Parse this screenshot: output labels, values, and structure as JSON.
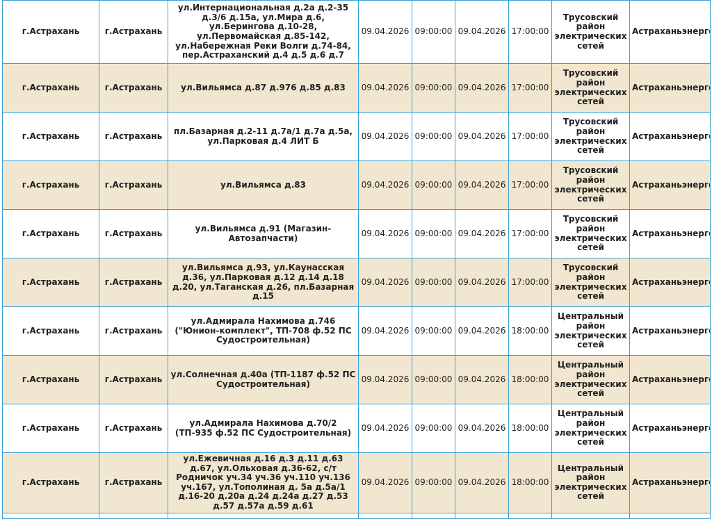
{
  "rows": [
    {
      "city1": "г.Астрахань",
      "city2": "г.Астрахань",
      "address": "ул.Интернациональная д.2а д.2-35 д.3/6 д.15а, ул.Мира д.6, ул.Берингова д.10-28, ул.Первомайская д.85-142, ул.Набережная Реки Волги д.74-84, пер.Астраханский д.4 д.5 д.6 д.7",
      "date_start": "09.04.2026",
      "time_start": "09:00:00",
      "date_end": "09.04.2026",
      "time_end": "17:00:00",
      "district": "Трусовский район электрических сетей",
      "org": "Астраханьэнерго"
    },
    {
      "city1": "г.Астрахань",
      "city2": "г.Астрахань",
      "address": "ул.Вильямса д.87 д.976 д.85 д.83",
      "date_start": "09.04.2026",
      "time_start": "09:00:00",
      "date_end": "09.04.2026",
      "time_end": "17:00:00",
      "district": "Трусовский район электрических сетей",
      "org": "Астраханьэнерго"
    },
    {
      "city1": "г.Астрахань",
      "city2": "г.Астрахань",
      "address": "пл.Базарная д.2-11 д.7а/1 д.7а д.5а, ул.Парковая д.4 ЛИТ Б",
      "date_start": "09.04.2026",
      "time_start": "09:00:00",
      "date_end": "09.04.2026",
      "time_end": "17:00:00",
      "district": "Трусовский район электрических сетей",
      "org": "Астраханьэнерго"
    },
    {
      "city1": "г.Астрахань",
      "city2": "г.Астрахань",
      "address": "ул.Вильямса д.83",
      "date_start": "09.04.2026",
      "time_start": "09:00:00",
      "date_end": "09.04.2026",
      "time_end": "17:00:00",
      "district": "Трусовский район электрических сетей",
      "org": "Астраханьэнерго"
    },
    {
      "city1": "г.Астрахань",
      "city2": "г.Астрахань",
      "address": "ул.Вильямса д.91 (Магазин-Автозапчасти)",
      "date_start": "09.04.2026",
      "time_start": "09:00:00",
      "date_end": "09.04.2026",
      "time_end": "17:00:00",
      "district": "Трусовский район электрических сетей",
      "org": "Астраханьэнерго"
    },
    {
      "city1": "г.Астрахань",
      "city2": "г.Астрахань",
      "address": "ул.Вильямса д.93, ул.Каунасская д.36, ул.Парковая д.12 д.14 д.18 д.20, ул.Таганская д.26, пл.Базарная д.15",
      "date_start": "09.04.2026",
      "time_start": "09:00:00",
      "date_end": "09.04.2026",
      "time_end": "17:00:00",
      "district": "Трусовский район электрических сетей",
      "org": "Астраханьэнерго"
    },
    {
      "city1": "г.Астрахань",
      "city2": "г.Астрахань",
      "address": "ул.Адмирала Нахимова д.746 (\"Юнион-комплект\", ТП-708 ф.52 ПС Судостроительная)",
      "date_start": "09.04.2026",
      "time_start": "09:00:00",
      "date_end": "09.04.2026",
      "time_end": "18:00:00",
      "district": "Центральный район электрических сетей",
      "org": "Астраханьэнерго"
    },
    {
      "city1": "г.Астрахань",
      "city2": "г.Астрахань",
      "address": "ул.Солнечная д.40а (ТП-1187 ф.52 ПС Судостроительная)",
      "date_start": "09.04.2026",
      "time_start": "09:00:00",
      "date_end": "09.04.2026",
      "time_end": "18:00:00",
      "district": "Центральный район электрических сетей",
      "org": "Астраханьэнерго"
    },
    {
      "city1": "г.Астрахань",
      "city2": "г.Астрахань",
      "address": "ул.Адмирала Нахимова д.70/2 (ТП-935 ф.52 ПС Судостроительная)",
      "date_start": "09.04.2026",
      "time_start": "09:00:00",
      "date_end": "09.04.2026",
      "time_end": "18:00:00",
      "district": "Центральный район электрических сетей",
      "org": "Астраханьэнерго"
    },
    {
      "city1": "г.Астрахань",
      "city2": "г.Астрахань",
      "address": "ул.Ежевичная д.16 д.3 д.11 д.63 д.67, ул.Ольховая д.36-62, с/т Родничок уч.34 уч.36 уч.110 уч.136 уч.167, ул.Тополиная д. 5а д.5а/1 д.16-20 д.20а д.24 д.24а д.27 д.53 д.57 д.57а д.59 д.61",
      "date_start": "09.04.2026",
      "time_start": "09:00:00",
      "date_end": "09.04.2026",
      "time_end": "18:00:00",
      "district": "Центральный район электрических сетей",
      "org": "Астраханьэнерго"
    }
  ]
}
